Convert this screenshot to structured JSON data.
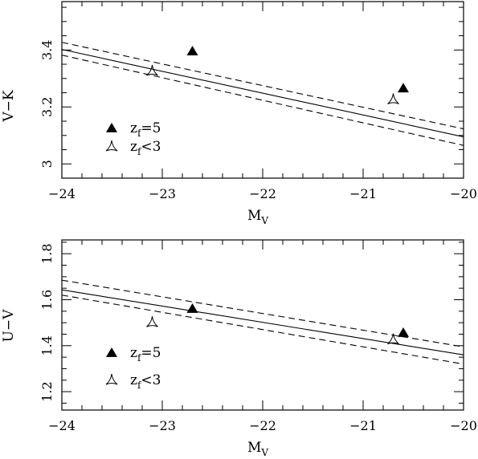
{
  "chart_data": [
    {
      "type": "scatter",
      "xlabel": "M",
      "xlabel_sub": "V",
      "ylabel": "V−K",
      "xlim": [
        -24,
        -20
      ],
      "ylim": [
        2.95,
        3.57
      ],
      "xticks": [
        -24,
        -23,
        -22,
        -21,
        -20
      ],
      "xtick_labels": [
        "−24",
        "−23",
        "−22",
        "−21",
        "−20"
      ],
      "yticks": [
        3.0,
        3.2,
        3.4
      ],
      "ytick_labels": [
        "3",
        "3.2",
        "3.4"
      ],
      "legend_position": "bottom-left",
      "series": [
        {
          "name": "z_f=5",
          "label_main": "z",
          "label_sub": "f",
          "label_rest": "=5",
          "marker": "filled-triangle",
          "points": [
            [
              -22.7,
              3.395
            ],
            [
              -20.6,
              3.265
            ]
          ]
        },
        {
          "name": "z_f<3",
          "label_main": "z",
          "label_sub": "f",
          "label_rest": "<3",
          "marker": "open-tripod",
          "points": [
            [
              -23.1,
              3.325
            ],
            [
              -20.7,
              3.225
            ]
          ]
        }
      ],
      "lines": [
        {
          "style": "solid",
          "x": [
            -24,
            -20
          ],
          "y": [
            3.402,
            3.095
          ]
        },
        {
          "style": "dashed",
          "x": [
            -24,
            -20
          ],
          "y": [
            3.427,
            3.123
          ]
        },
        {
          "style": "dashed",
          "x": [
            -24,
            -20
          ],
          "y": [
            3.382,
            3.065
          ]
        }
      ]
    },
    {
      "type": "scatter",
      "xlabel": "M",
      "xlabel_sub": "V",
      "ylabel": "U−V",
      "xlim": [
        -24,
        -20
      ],
      "ylim": [
        1.12,
        1.86
      ],
      "xticks": [
        -24,
        -23,
        -22,
        -21,
        -20
      ],
      "xtick_labels": [
        "−24",
        "−23",
        "−22",
        "−21",
        "−20"
      ],
      "yticks": [
        1.2,
        1.4,
        1.6,
        1.8
      ],
      "ytick_labels": [
        "1.2",
        "1.4",
        "1.6",
        "1.8"
      ],
      "legend_position": "bottom-left",
      "series": [
        {
          "name": "z_f=5",
          "label_main": "z",
          "label_sub": "f",
          "label_rest": "=5",
          "marker": "filled-triangle",
          "points": [
            [
              -22.7,
              1.56
            ],
            [
              -20.6,
              1.455
            ]
          ]
        },
        {
          "name": "z_f<3",
          "label_main": "z",
          "label_sub": "f",
          "label_rest": "<3",
          "marker": "open-tripod",
          "points": [
            [
              -23.1,
              1.5
            ],
            [
              -20.7,
              1.425
            ]
          ]
        }
      ],
      "lines": [
        {
          "style": "solid",
          "x": [
            -24,
            -20
          ],
          "y": [
            1.643,
            1.36
          ]
        },
        {
          "style": "dashed",
          "x": [
            -24,
            -20
          ],
          "y": [
            1.685,
            1.395
          ]
        },
        {
          "style": "dashed",
          "x": [
            -24,
            -20
          ],
          "y": [
            1.62,
            1.32
          ]
        }
      ]
    }
  ]
}
